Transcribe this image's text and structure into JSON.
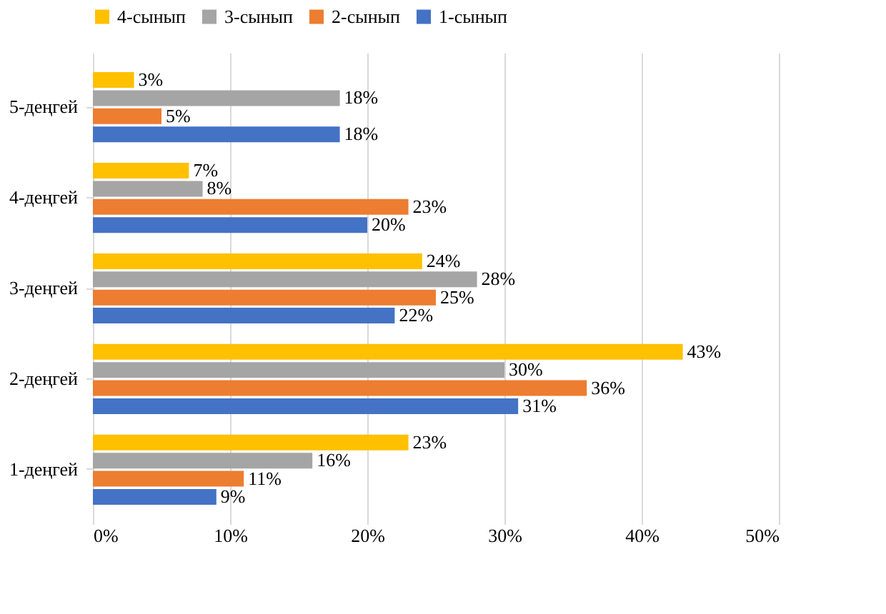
{
  "chart_data": {
    "type": "bar",
    "orientation": "horizontal",
    "categories": [
      "5-деңгей",
      "4-деңгей",
      "3-деңгей",
      "2-деңгей",
      "1-деңгей"
    ],
    "series": [
      {
        "name": "4-сынып",
        "color": "#ffc000",
        "values": [
          3,
          7,
          24,
          43,
          23
        ],
        "value_labels": [
          "3%",
          "7%",
          "24%",
          "43%",
          "23%"
        ]
      },
      {
        "name": "3-сынып",
        "color": "#a5a5a5",
        "values": [
          18,
          8,
          28,
          30,
          16
        ],
        "value_labels": [
          "18%",
          "8%",
          "28%",
          "30%",
          "16%"
        ]
      },
      {
        "name": "2-сынып",
        "color": "#ed7d31",
        "values": [
          5,
          23,
          25,
          36,
          11
        ],
        "value_labels": [
          "5%",
          "23%",
          "25%",
          "36%",
          "11%"
        ]
      },
      {
        "name": "1-сынып",
        "color": "#4472c4",
        "values": [
          18,
          20,
          22,
          31,
          9
        ],
        "value_labels": [
          "18%",
          "20%",
          "22%",
          "31%",
          "9%"
        ]
      }
    ],
    "xlim": [
      0,
      50
    ],
    "xticks": [
      {
        "value": 0,
        "label": "0%"
      },
      {
        "value": 10,
        "label": "10%"
      },
      {
        "value": 20,
        "label": "20%"
      },
      {
        "value": 30,
        "label": "30%"
      },
      {
        "value": 40,
        "label": "40%"
      },
      {
        "value": 50,
        "label": "50%"
      }
    ],
    "grid": "x",
    "legend": "top"
  }
}
